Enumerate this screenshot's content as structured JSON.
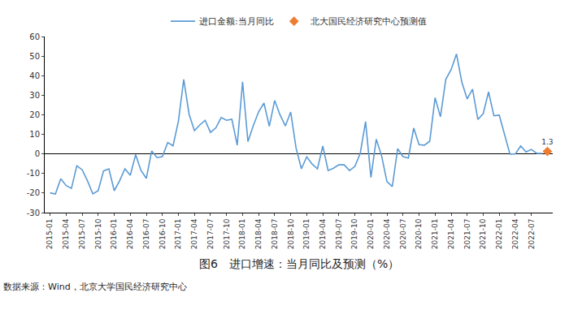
{
  "chart_data": {
    "type": "line",
    "title": "图6　进口增速：当月同比及预测（%）",
    "annotations": [
      "数据来源：Wind，北京大学国民经济研究中心"
    ],
    "categories": [
      "2015-01",
      null,
      null,
      "2015-04",
      null,
      null,
      "2015-07",
      null,
      null,
      "2015-10",
      null,
      null,
      "2016-01",
      null,
      null,
      "2016-04",
      null,
      null,
      "2016-07",
      null,
      null,
      "2016-10",
      null,
      null,
      "2017-01",
      null,
      null,
      "2017-04",
      null,
      null,
      "2017-07",
      null,
      null,
      "2017-10",
      null,
      null,
      "2018-01",
      null,
      null,
      "2018-04",
      null,
      null,
      "2018-07",
      null,
      null,
      "2018-10",
      null,
      null,
      "2019-01",
      null,
      null,
      "2019-04",
      null,
      null,
      "2019-07",
      null,
      null,
      "2019-10",
      null,
      null,
      "2020-01",
      null,
      null,
      "2020-04",
      null,
      null,
      "2020-07",
      null,
      null,
      "2020-10",
      null,
      null,
      "2021-01",
      null,
      null,
      "2021-04",
      null,
      null,
      "2021-07",
      null,
      null,
      "2021-10",
      null,
      null,
      "2022-01",
      null,
      null,
      "2022-04",
      null,
      null,
      "2022-07",
      null,
      null,
      null
    ],
    "series": [
      {
        "name": "进口金额:当月同比",
        "color": "#5b9bd5",
        "type": "line",
        "marker": "none",
        "line_style": "solid",
        "values": [
          -19.9,
          -20.5,
          -12.7,
          -16.2,
          -17.6,
          -6.1,
          -8.1,
          -13.8,
          -20.4,
          -18.8,
          -8.7,
          -7.6,
          -18.8,
          -13.8,
          -7.6,
          -10.9,
          -0.4,
          -8.4,
          -12.5,
          1.5,
          -1.9,
          -1.4,
          5.8,
          4.1,
          16.7,
          38.1,
          20.3,
          11.9,
          14.8,
          17.2,
          11.0,
          13.3,
          18.6,
          17.2,
          17.7,
          4.5,
          36.9,
          6.3,
          14.4,
          21.5,
          26.0,
          14.1,
          27.3,
          20.0,
          14.3,
          21.4,
          3.0,
          -7.6,
          -1.5,
          -5.2,
          -7.6,
          4.0,
          -8.5,
          -7.3,
          -5.6,
          -5.6,
          -8.5,
          -6.4,
          0.3,
          16.5,
          -12.0,
          7.5,
          -1.0,
          -14.2,
          -16.7,
          2.7,
          -1.4,
          -2.1,
          13.2,
          4.7,
          4.5,
          6.5,
          28.7,
          19.0,
          38.1,
          43.1,
          51.1,
          36.7,
          28.1,
          33.1,
          17.6,
          20.6,
          31.7,
          19.5,
          19.8,
          10.4,
          -0.1,
          0.0,
          4.1,
          1.0,
          2.3,
          0.3,
          0.3,
          null
        ]
      },
      {
        "name": "北大国民经济研究中心预测值",
        "color": "#ed7d31",
        "type": "scatter",
        "marker": "diamond",
        "data_labels": true,
        "values": [
          null,
          null,
          null,
          null,
          null,
          null,
          null,
          null,
          null,
          null,
          null,
          null,
          null,
          null,
          null,
          null,
          null,
          null,
          null,
          null,
          null,
          null,
          null,
          null,
          null,
          null,
          null,
          null,
          null,
          null,
          null,
          null,
          null,
          null,
          null,
          null,
          null,
          null,
          null,
          null,
          null,
          null,
          null,
          null,
          null,
          null,
          null,
          null,
          null,
          null,
          null,
          null,
          null,
          null,
          null,
          null,
          null,
          null,
          null,
          null,
          null,
          null,
          null,
          null,
          null,
          null,
          null,
          null,
          null,
          null,
          null,
          null,
          null,
          null,
          null,
          null,
          null,
          null,
          null,
          null,
          null,
          null,
          null,
          null,
          null,
          null,
          null,
          null,
          null,
          null,
          null,
          null,
          null,
          1.3
        ]
      }
    ],
    "ylim": [
      -30,
      60
    ],
    "yticks": [
      -30,
      -20,
      -10,
      0,
      10,
      20,
      30,
      40,
      50,
      60
    ],
    "grid": false,
    "legend": "top"
  }
}
